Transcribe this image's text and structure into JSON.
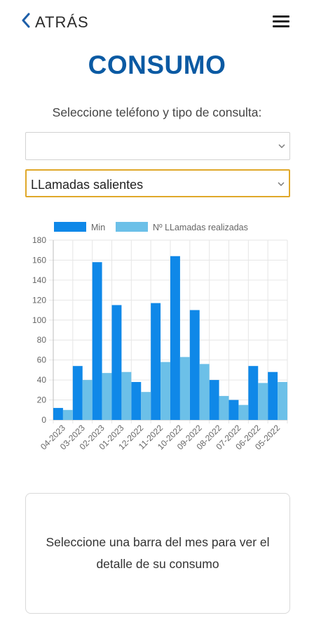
{
  "header": {
    "back_label": "ATRÁS",
    "back_icon": "chevron-left-icon",
    "menu_icon": "hamburger-menu-icon"
  },
  "page": {
    "title": "CONSUMO",
    "subtitle": "Seleccione teléfono y tipo de consulta:"
  },
  "form": {
    "phone_select": {
      "value": "",
      "icon": "chevron-down-icon"
    },
    "type_select": {
      "value": "LLamadas salientes",
      "icon": "chevron-down-icon"
    }
  },
  "colors": {
    "title": "#0b5aa3",
    "accent_border": "#e0a82a",
    "series_min": "#0f88e8",
    "series_calls": "#6cc0e8"
  },
  "chart_data": {
    "type": "bar",
    "categories": [
      "04-2023",
      "03-2023",
      "02-2023",
      "01-2023",
      "12-2022",
      "11-2022",
      "10-2022",
      "09-2022",
      "08-2022",
      "07-2022",
      "06-2022",
      "05-2022"
    ],
    "series": [
      {
        "name": "Min",
        "values": [
          12,
          54,
          158,
          115,
          38,
          117,
          164,
          110,
          40,
          20,
          54,
          48
        ]
      },
      {
        "name": "Nº LLamadas realizadas",
        "values": [
          10,
          40,
          47,
          48,
          28,
          58,
          63,
          56,
          24,
          15,
          37,
          38
        ]
      }
    ],
    "ylim": [
      0,
      180
    ],
    "yticks": [
      0,
      20,
      40,
      60,
      80,
      100,
      120,
      140,
      160,
      180
    ],
    "grid": true,
    "legend_position": "top"
  },
  "info_card": {
    "text": "Seleccione una barra del mes para ver el detalle de su consumo"
  }
}
